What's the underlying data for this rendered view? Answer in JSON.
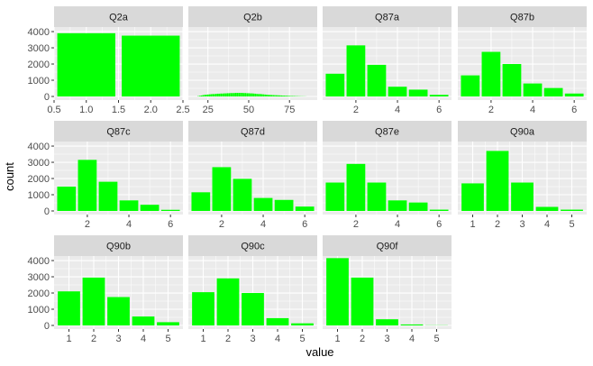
{
  "chart_data": {
    "type": "bar",
    "layout": "facet_wrap",
    "xlabel": "value",
    "ylabel": "count",
    "ylim": [
      0,
      4000
    ],
    "y_ticks": [
      0,
      1000,
      2000,
      3000,
      4000
    ],
    "grid": true,
    "colors": {
      "bar": "#00ff00",
      "panel_bg": "#ebebeb",
      "strip_bg": "#d9d9d9",
      "grid": "#ffffff"
    },
    "panels": [
      {
        "title": "Q2a",
        "xlim": [
          0.5,
          2.5
        ],
        "x_ticks": [
          0.5,
          1.0,
          1.5,
          2.0,
          2.5
        ],
        "x_tick_labels": [
          "0.5",
          "1.0",
          "1.5",
          "2.0",
          "2.5"
        ],
        "bin_width": 0.9,
        "x": [
          1,
          2
        ],
        "values": [
          3900,
          3750
        ]
      },
      {
        "title": "Q2b",
        "xlim": [
          13,
          92
        ],
        "x_ticks": [
          25,
          50,
          75
        ],
        "x_tick_labels": [
          "25",
          "50",
          "75"
        ],
        "bin_width": 0.9,
        "x": [
          19,
          20,
          21,
          22,
          23,
          24,
          25,
          26,
          27,
          28,
          29,
          30,
          31,
          32,
          33,
          34,
          35,
          36,
          37,
          38,
          39,
          40,
          41,
          42,
          43,
          44,
          45,
          46,
          47,
          48,
          49,
          50,
          51,
          52,
          53,
          54,
          55,
          56,
          57,
          58,
          59,
          60,
          61,
          62,
          63,
          64,
          65,
          66,
          67,
          68,
          69,
          70,
          71,
          72,
          73,
          74,
          75,
          76,
          77,
          78,
          79,
          80,
          81,
          82,
          83,
          84,
          85
        ],
        "values": [
          20,
          40,
          60,
          80,
          100,
          110,
          120,
          130,
          140,
          150,
          150,
          160,
          170,
          170,
          180,
          180,
          190,
          190,
          200,
          200,
          210,
          210,
          210,
          220,
          220,
          220,
          220,
          220,
          210,
          210,
          200,
          200,
          190,
          190,
          180,
          170,
          160,
          150,
          150,
          140,
          130,
          120,
          110,
          100,
          95,
          90,
          85,
          80,
          75,
          70,
          65,
          60,
          55,
          50,
          45,
          40,
          35,
          30,
          28,
          25,
          20,
          18,
          15,
          12,
          10,
          8,
          5
        ]
      },
      {
        "title": "Q87a",
        "xlim": [
          0.4,
          6.6
        ],
        "x_ticks": [
          2,
          4,
          6
        ],
        "x_tick_labels": [
          "2",
          "4",
          "6"
        ],
        "bin_width": 0.9,
        "x": [
          1,
          2,
          3,
          4,
          5,
          6
        ],
        "values": [
          1400,
          3150,
          1950,
          600,
          420,
          100
        ]
      },
      {
        "title": "Q87b",
        "xlim": [
          0.4,
          6.6
        ],
        "x_ticks": [
          2,
          4,
          6
        ],
        "x_tick_labels": [
          "2",
          "4",
          "6"
        ],
        "bin_width": 0.9,
        "x": [
          1,
          2,
          3,
          4,
          5,
          6
        ],
        "values": [
          1300,
          2750,
          2000,
          800,
          520,
          180
        ]
      },
      {
        "title": "Q87c",
        "xlim": [
          0.4,
          6.6
        ],
        "x_ticks": [
          2,
          4,
          6
        ],
        "x_tick_labels": [
          "2",
          "4",
          "6"
        ],
        "bin_width": 0.9,
        "x": [
          1,
          2,
          3,
          4,
          5,
          6
        ],
        "values": [
          1500,
          3150,
          1800,
          650,
          380,
          70
        ]
      },
      {
        "title": "Q87d",
        "xlim": [
          0.4,
          6.6
        ],
        "x_ticks": [
          2,
          4,
          6
        ],
        "x_tick_labels": [
          "2",
          "4",
          "6"
        ],
        "bin_width": 0.9,
        "x": [
          1,
          2,
          3,
          4,
          5,
          6
        ],
        "values": [
          1150,
          2700,
          1980,
          800,
          680,
          270
        ]
      },
      {
        "title": "Q87e",
        "xlim": [
          0.4,
          6.6
        ],
        "x_ticks": [
          2,
          4,
          6
        ],
        "x_tick_labels": [
          "2",
          "4",
          "6"
        ],
        "bin_width": 0.9,
        "x": [
          1,
          2,
          3,
          4,
          5,
          6
        ],
        "values": [
          1750,
          2900,
          1750,
          650,
          520,
          80
        ]
      },
      {
        "title": "Q90a",
        "xlim": [
          0.4,
          5.6
        ],
        "x_ticks": [
          1,
          2,
          3,
          4,
          5
        ],
        "x_tick_labels": [
          "1",
          "2",
          "3",
          "4",
          "5"
        ],
        "bin_width": 0.9,
        "x": [
          1,
          2,
          3,
          4,
          5
        ],
        "values": [
          1700,
          3700,
          1750,
          250,
          80
        ]
      },
      {
        "title": "Q90b",
        "xlim": [
          0.4,
          5.6
        ],
        "x_ticks": [
          1,
          2,
          3,
          4,
          5
        ],
        "x_tick_labels": [
          "1",
          "2",
          "3",
          "4",
          "5"
        ],
        "bin_width": 0.9,
        "x": [
          1,
          2,
          3,
          4,
          5
        ],
        "values": [
          2100,
          2950,
          1750,
          550,
          200
        ]
      },
      {
        "title": "Q90c",
        "xlim": [
          0.4,
          5.6
        ],
        "x_ticks": [
          1,
          2,
          3,
          4,
          5
        ],
        "x_tick_labels": [
          "1",
          "2",
          "3",
          "4",
          "5"
        ],
        "bin_width": 0.9,
        "x": [
          1,
          2,
          3,
          4,
          5
        ],
        "values": [
          2050,
          2900,
          2000,
          450,
          130
        ]
      },
      {
        "title": "Q90f",
        "xlim": [
          0.4,
          5.6
        ],
        "x_ticks": [
          1,
          2,
          3,
          4,
          5
        ],
        "x_tick_labels": [
          "1",
          "2",
          "3",
          "4",
          "5"
        ],
        "bin_width": 0.9,
        "x": [
          1,
          2,
          3,
          4,
          5
        ],
        "values": [
          4150,
          2950,
          380,
          60,
          10
        ]
      }
    ]
  }
}
